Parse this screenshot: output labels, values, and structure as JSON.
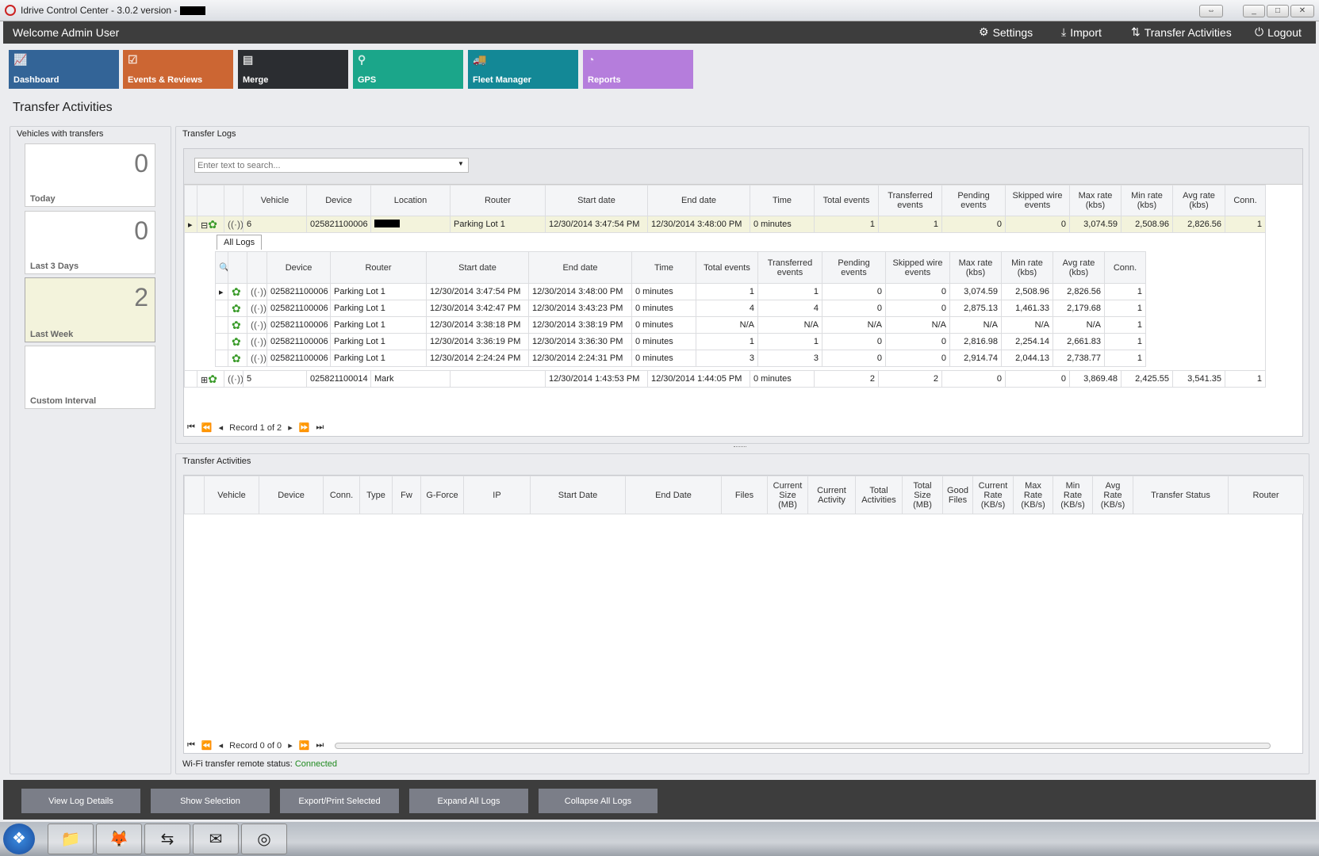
{
  "window": {
    "title": "Idrive Control Center - 3.0.2 version -",
    "controls": [
      "⇔",
      "_",
      "□",
      "✕"
    ]
  },
  "header": {
    "welcome": "Welcome Admin User",
    "links": [
      {
        "label": "Settings",
        "icon": "gears-icon"
      },
      {
        "label": "Import",
        "icon": "download-icon"
      },
      {
        "label": "Transfer Activities",
        "icon": "transfer-icon"
      },
      {
        "label": "Logout",
        "icon": "power-icon"
      }
    ]
  },
  "tiles": [
    {
      "label": "Dashboard",
      "color": "#336497",
      "icon": "chart-icon"
    },
    {
      "label": "Events & Reviews",
      "color": "#cc6633",
      "icon": "clipboard-icon"
    },
    {
      "label": "Merge",
      "color": "#2b2d31",
      "icon": "merge-icon"
    },
    {
      "label": "GPS",
      "color": "#1ba68a",
      "icon": "map-pin-icon"
    },
    {
      "label": "Fleet Manager",
      "color": "#138896",
      "icon": "vehicles-icon"
    },
    {
      "label": "Reports",
      "color": "#b57ddc",
      "icon": "pie-icon"
    }
  ],
  "page_title": "Transfer Activities",
  "vehicles_panel": {
    "title": "Vehicles with transfers",
    "cards": [
      {
        "value": "0",
        "label": "Today"
      },
      {
        "value": "0",
        "label": "Last 3 Days"
      },
      {
        "value": "2",
        "label": "Last Week",
        "selected": true
      },
      {
        "value": "",
        "label": "Custom Interval"
      }
    ]
  },
  "logs_panel": {
    "title": "Transfer Logs",
    "search_placeholder": "Enter text to search...",
    "columns": [
      "",
      "",
      "",
      "Vehicle",
      "Device",
      "Location",
      "Router",
      "Start date",
      "End date",
      "Time",
      "Total events",
      "Transferred events",
      "Pending events",
      "Skipped wire events",
      "Max rate (kbs)",
      "Min rate (kbs)",
      "Avg rate (kbs)",
      "Conn."
    ],
    "rows": [
      {
        "vehicle": "6",
        "device": "025821100006",
        "location": "[redacted]",
        "router": "Parking Lot 1",
        "start": "12/30/2014 3:47:54 PM",
        "end": "12/30/2014 3:48:00 PM",
        "time": "0 minutes",
        "total": "1",
        "transferred": "1",
        "pending": "0",
        "skipped": "0",
        "max": "3,074.59",
        "min": "2,508.96",
        "avg": "2,826.56",
        "conn": "1",
        "expanded": true
      },
      {
        "vehicle": "5",
        "device": "025821100014",
        "location": "Mark",
        "router": "",
        "start": "12/30/2014 1:43:53 PM",
        "end": "12/30/2014 1:44:05 PM",
        "time": "0 minutes",
        "total": "2",
        "transferred": "2",
        "pending": "0",
        "skipped": "0",
        "max": "3,869.48",
        "min": "2,425.55",
        "avg": "3,541.35",
        "conn": "1",
        "expanded": false
      }
    ],
    "detail": {
      "tab": "All Logs",
      "columns": [
        "",
        "",
        "",
        "Device",
        "Router",
        "Start date",
        "End date",
        "Time",
        "Total events",
        "Transferred events",
        "Pending events",
        "Skipped wire events",
        "Max rate (kbs)",
        "Min rate (kbs)",
        "Avg rate (kbs)",
        "Conn."
      ],
      "rows": [
        [
          "025821100006",
          "Parking Lot 1",
          "12/30/2014 3:47:54 PM",
          "12/30/2014 3:48:00 PM",
          "0 minutes",
          "1",
          "1",
          "0",
          "0",
          "3,074.59",
          "2,508.96",
          "2,826.56",
          "1"
        ],
        [
          "025821100006",
          "Parking Lot 1",
          "12/30/2014 3:42:47 PM",
          "12/30/2014 3:43:23 PM",
          "0 minutes",
          "4",
          "4",
          "0",
          "0",
          "2,875.13",
          "1,461.33",
          "2,179.68",
          "1"
        ],
        [
          "025821100006",
          "Parking Lot 1",
          "12/30/2014 3:38:18 PM",
          "12/30/2014 3:38:19 PM",
          "0 minutes",
          "N/A",
          "N/A",
          "N/A",
          "N/A",
          "N/A",
          "N/A",
          "N/A",
          "1"
        ],
        [
          "025821100006",
          "Parking Lot 1",
          "12/30/2014 3:36:19 PM",
          "12/30/2014 3:36:30 PM",
          "0 minutes",
          "1",
          "1",
          "0",
          "0",
          "2,816.98",
          "2,254.14",
          "2,661.83",
          "1"
        ],
        [
          "025821100006",
          "Parking Lot 1",
          "12/30/2014 2:24:24 PM",
          "12/30/2014 2:24:31 PM",
          "0 minutes",
          "3",
          "3",
          "0",
          "0",
          "2,914.74",
          "2,044.13",
          "2,738.77",
          "1"
        ]
      ]
    },
    "pager": "Record 1 of 2"
  },
  "activities_panel": {
    "title": "Transfer Activities",
    "columns": [
      "",
      "Vehicle",
      "Device",
      "Conn.",
      "Type",
      "Fw",
      "G-Force",
      "IP",
      "Start Date",
      "End Date",
      "Files",
      "Current Size (MB)",
      "Current Activity",
      "Total Activities",
      "Total Size (MB)",
      "Good Files",
      "Current Rate (KB/s)",
      "Max Rate (KB/s)",
      "Min Rate (KB/s)",
      "Avg Rate (KB/s)",
      "Transfer Status",
      "Router"
    ],
    "pager": "Record 0 of 0"
  },
  "status": {
    "label": "Wi-Fi transfer remote status:",
    "value": "Connected",
    "color": "#1f8a1f"
  },
  "buttons": [
    "View Log Details",
    "Show Selection",
    "Export/Print Selected",
    "Expand All Logs",
    "Collapse All Logs"
  ],
  "taskbar": [
    {
      "name": "start-orb-icon",
      "glyph": "❖"
    },
    {
      "name": "file-explorer-icon",
      "glyph": "📁"
    },
    {
      "name": "firefox-icon",
      "glyph": "🦊"
    },
    {
      "name": "teamviewer-icon",
      "glyph": "⇆"
    },
    {
      "name": "outlook-icon",
      "glyph": "✉"
    },
    {
      "name": "idrive-icon",
      "glyph": "◎"
    }
  ]
}
